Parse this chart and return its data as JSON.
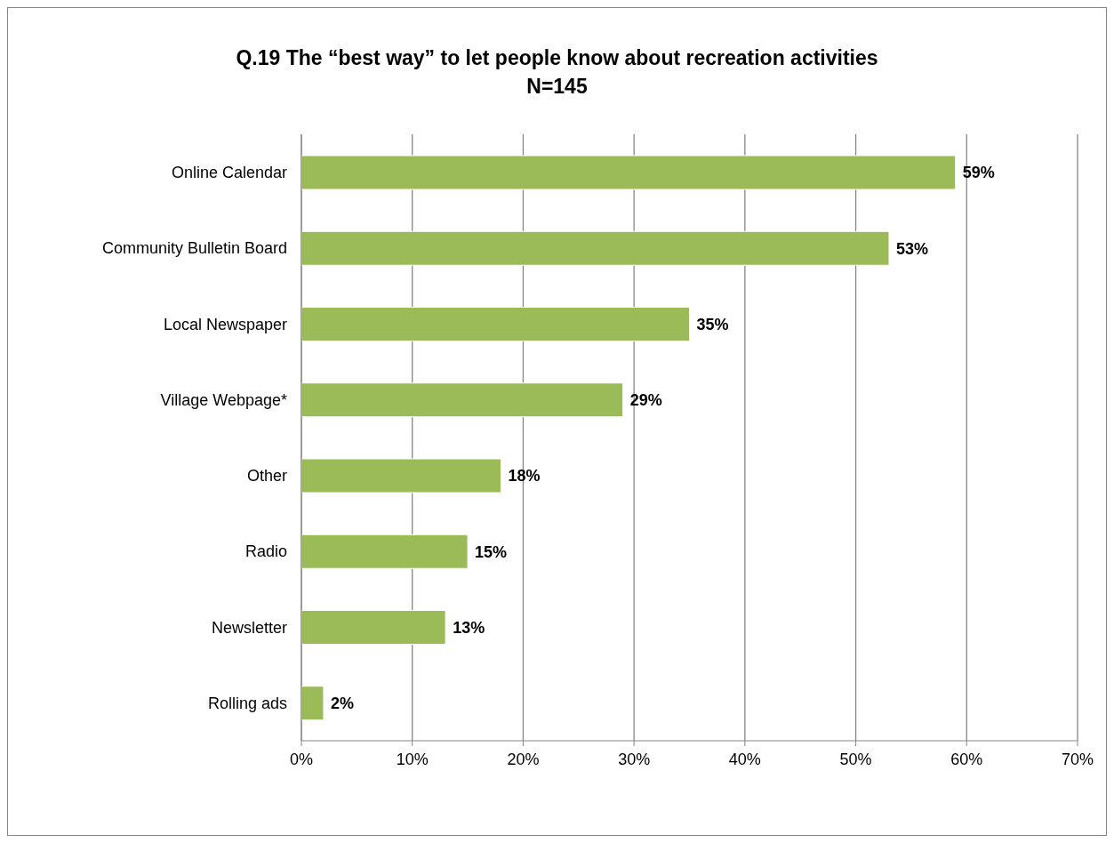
{
  "chart_data": {
    "type": "bar",
    "orientation": "horizontal",
    "title": "Q.19 The “best way” to let people know about recreation activities",
    "subtitle": "N=145",
    "categories": [
      "Online Calendar",
      "Community Bulletin Board",
      "Local Newspaper",
      "Village Webpage*",
      "Other",
      "Radio",
      "Newsletter",
      "Rolling ads"
    ],
    "values": [
      59,
      53,
      35,
      29,
      18,
      15,
      13,
      2
    ],
    "value_labels": [
      "59%",
      "53%",
      "35%",
      "29%",
      "18%",
      "15%",
      "13%",
      "2%"
    ],
    "color": "#9bbb59",
    "xlim": [
      0,
      70
    ],
    "xticks": [
      {
        "value": 0,
        "label": "0%"
      },
      {
        "value": 10,
        "label": "10%"
      },
      {
        "value": 20,
        "label": "20%"
      },
      {
        "value": 30,
        "label": "30%"
      },
      {
        "value": 40,
        "label": "40%"
      },
      {
        "value": 50,
        "label": "50%"
      },
      {
        "value": 60,
        "label": "60%"
      },
      {
        "value": 70,
        "label": "70%"
      }
    ],
    "grid": "x"
  }
}
